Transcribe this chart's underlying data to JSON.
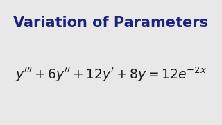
{
  "title": "Variation of Parameters",
  "title_color": "#1a237e",
  "title_fontsize": 15,
  "title_fontweight": "bold",
  "equation_fontsize": 13.5,
  "equation_color": "#1a1a1a",
  "background_color": "#e8e8e8",
  "fig_width": 3.2,
  "fig_height": 1.8,
  "dpi": 100
}
